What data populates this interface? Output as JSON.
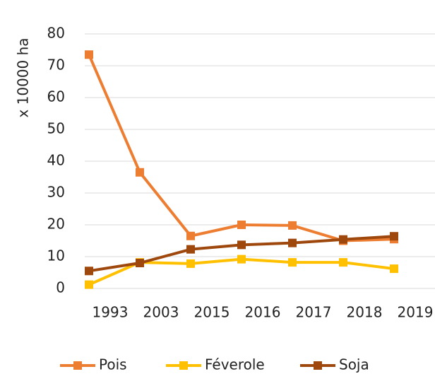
{
  "chart_data": {
    "type": "line",
    "y_label": "x 10000 ha",
    "categories": [
      "1993",
      "2003",
      "2015",
      "2016",
      "2017",
      "2018",
      "2019"
    ],
    "series": [
      {
        "name": "Pois",
        "color": "#ed7d31",
        "values": [
          73.5,
          36.5,
          16.5,
          20,
          19.8,
          15,
          15.5
        ]
      },
      {
        "name": "Féverole",
        "color": "#ffc000",
        "values": [
          1.2,
          8.2,
          7.8,
          9.2,
          8.2,
          8.2,
          6.2
        ]
      },
      {
        "name": "Soja",
        "color": "#9e480e",
        "values": [
          5.5,
          8,
          12.3,
          13.7,
          14.3,
          15.4,
          16.4
        ]
      }
    ],
    "ylim": [
      0,
      80
    ],
    "yticks": [
      0,
      10,
      20,
      30,
      40,
      50,
      60,
      70,
      80
    ],
    "grid": true,
    "legend": "bottom"
  }
}
